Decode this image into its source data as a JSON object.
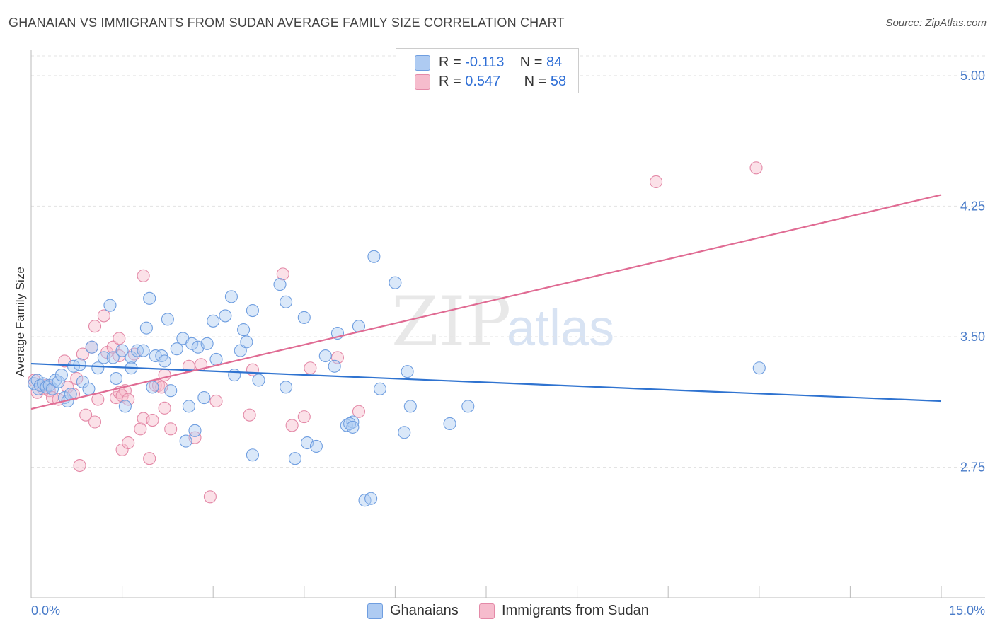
{
  "title": "GHANAIAN VS IMMIGRANTS FROM SUDAN AVERAGE FAMILY SIZE CORRELATION CHART",
  "source": "Source: ZipAtlas.com",
  "watermark": {
    "part1": "ZIP",
    "part2": "atlas"
  },
  "legend": {
    "rows": [
      {
        "r_label": "R = ",
        "r_value": "-0.113",
        "n_label": "N = ",
        "n_value": "84"
      },
      {
        "r_label": "R = ",
        "r_value": "0.547",
        "n_label": "N = ",
        "n_value": "58"
      }
    ]
  },
  "colors": {
    "blue_fill": "#aecbf2",
    "blue_stroke": "#6f9ee0",
    "blue_line": "#2f73d0",
    "pink_fill": "#f6bccd",
    "pink_stroke": "#e48aa8",
    "pink_line": "#e06b93",
    "grid": "#e3e3e3",
    "tick_label": "#4a7cc9"
  },
  "chart_data": {
    "type": "scatter",
    "title": "GHANAIAN VS IMMIGRANTS FROM SUDAN AVERAGE FAMILY SIZE CORRELATION CHART",
    "xlabel": "",
    "ylabel": "Average Family Size",
    "xlim": [
      0,
      15
    ],
    "ylim": [
      2.0,
      5.15
    ],
    "x_ticks_labels": [
      "0.0%",
      "15.0%"
    ],
    "y_ticks": [
      2.75,
      3.5,
      4.25,
      5.0
    ],
    "y_ticks_labels": [
      "2.75",
      "3.50",
      "4.25",
      "5.00"
    ],
    "grid": "horizontal dashed",
    "legend_position": "top-center",
    "series": [
      {
        "name": "Ghanaians",
        "color": "#aecbf2",
        "trend": {
          "x": [
            0,
            15
          ],
          "y": [
            3.345,
            3.13
          ]
        },
        "points": [
          [
            0.05,
            3.23
          ],
          [
            0.1,
            3.25
          ],
          [
            0.12,
            3.2
          ],
          [
            0.15,
            3.22
          ],
          [
            0.2,
            3.23
          ],
          [
            0.25,
            3.21
          ],
          [
            0.3,
            3.22
          ],
          [
            0.35,
            3.2
          ],
          [
            0.4,
            3.25
          ],
          [
            0.45,
            3.24
          ],
          [
            0.5,
            3.28
          ],
          [
            0.55,
            3.15
          ],
          [
            0.6,
            3.13
          ],
          [
            0.65,
            3.17
          ],
          [
            0.7,
            3.33
          ],
          [
            0.8,
            3.34
          ],
          [
            0.85,
            3.24
          ],
          [
            0.95,
            3.2
          ],
          [
            1.0,
            3.44
          ],
          [
            1.1,
            3.32
          ],
          [
            1.2,
            3.38
          ],
          [
            1.3,
            3.68
          ],
          [
            1.35,
            3.38
          ],
          [
            1.4,
            3.26
          ],
          [
            1.5,
            3.42
          ],
          [
            1.55,
            3.1
          ],
          [
            1.65,
            3.38
          ],
          [
            1.65,
            3.32
          ],
          [
            1.75,
            3.42
          ],
          [
            1.85,
            3.42
          ],
          [
            1.9,
            3.55
          ],
          [
            1.95,
            3.72
          ],
          [
            2.0,
            3.21
          ],
          [
            2.05,
            3.39
          ],
          [
            2.15,
            3.39
          ],
          [
            2.2,
            3.36
          ],
          [
            2.25,
            3.6
          ],
          [
            2.3,
            3.19
          ],
          [
            2.4,
            3.43
          ],
          [
            2.5,
            3.49
          ],
          [
            2.55,
            2.9
          ],
          [
            2.6,
            3.1
          ],
          [
            2.65,
            3.46
          ],
          [
            2.7,
            2.96
          ],
          [
            2.75,
            3.44
          ],
          [
            2.85,
            3.15
          ],
          [
            2.9,
            3.46
          ],
          [
            3.0,
            3.59
          ],
          [
            3.05,
            3.37
          ],
          [
            3.2,
            3.62
          ],
          [
            3.3,
            3.73
          ],
          [
            3.35,
            3.28
          ],
          [
            3.45,
            3.42
          ],
          [
            3.5,
            3.54
          ],
          [
            3.55,
            3.47
          ],
          [
            3.65,
            3.65
          ],
          [
            3.75,
            3.25
          ],
          [
            3.65,
            2.82
          ],
          [
            4.1,
            3.8
          ],
          [
            4.2,
            3.21
          ],
          [
            4.2,
            3.7
          ],
          [
            4.35,
            2.8
          ],
          [
            4.5,
            3.61
          ],
          [
            4.55,
            2.89
          ],
          [
            4.7,
            2.87
          ],
          [
            4.85,
            3.39
          ],
          [
            5.0,
            3.33
          ],
          [
            5.05,
            3.52
          ],
          [
            5.2,
            2.99
          ],
          [
            5.3,
            3.01
          ],
          [
            5.25,
            3.0
          ],
          [
            5.4,
            3.56
          ],
          [
            5.5,
            2.56
          ],
          [
            5.6,
            2.57
          ],
          [
            5.65,
            3.96
          ],
          [
            5.75,
            3.2
          ],
          [
            6.0,
            3.81
          ],
          [
            6.15,
            2.95
          ],
          [
            6.2,
            3.3
          ],
          [
            6.25,
            3.1
          ],
          [
            6.9,
            3.0
          ],
          [
            7.2,
            3.1
          ],
          [
            12.0,
            3.32
          ],
          [
            5.3,
            2.98
          ]
        ]
      },
      {
        "name": "Immigrants from Sudan",
        "color": "#f6bccd",
        "trend": {
          "x": [
            0,
            15
          ],
          "y": [
            3.085,
            4.315
          ]
        },
        "points": [
          [
            0.05,
            3.25
          ],
          [
            0.1,
            3.18
          ],
          [
            0.15,
            3.22
          ],
          [
            0.2,
            3.2
          ],
          [
            0.25,
            3.22
          ],
          [
            0.3,
            3.19
          ],
          [
            0.35,
            3.15
          ],
          [
            0.45,
            3.14
          ],
          [
            0.55,
            3.36
          ],
          [
            0.6,
            3.21
          ],
          [
            0.7,
            3.17
          ],
          [
            0.75,
            3.26
          ],
          [
            0.8,
            2.76
          ],
          [
            0.85,
            3.4
          ],
          [
            0.9,
            3.05
          ],
          [
            1.0,
            3.44
          ],
          [
            1.05,
            3.56
          ],
          [
            1.05,
            3.01
          ],
          [
            1.1,
            3.14
          ],
          [
            1.2,
            3.62
          ],
          [
            1.25,
            3.41
          ],
          [
            1.35,
            3.44
          ],
          [
            1.4,
            3.15
          ],
          [
            1.45,
            3.18
          ],
          [
            1.55,
            3.19
          ],
          [
            1.5,
            3.16
          ],
          [
            1.45,
            3.39
          ],
          [
            1.45,
            3.49
          ],
          [
            1.5,
            2.85
          ],
          [
            1.6,
            3.14
          ],
          [
            1.6,
            2.89
          ],
          [
            1.7,
            3.4
          ],
          [
            1.8,
            2.97
          ],
          [
            1.85,
            3.03
          ],
          [
            1.85,
            3.85
          ],
          [
            1.95,
            2.8
          ],
          [
            2.0,
            3.02
          ],
          [
            2.05,
            3.22
          ],
          [
            2.1,
            3.22
          ],
          [
            2.15,
            3.21
          ],
          [
            2.2,
            3.28
          ],
          [
            2.2,
            3.09
          ],
          [
            2.3,
            2.97
          ],
          [
            2.6,
            3.33
          ],
          [
            2.7,
            2.92
          ],
          [
            2.8,
            3.34
          ],
          [
            2.95,
            2.58
          ],
          [
            3.05,
            3.13
          ],
          [
            3.6,
            3.05
          ],
          [
            3.65,
            3.31
          ],
          [
            4.15,
            3.86
          ],
          [
            4.3,
            2.99
          ],
          [
            4.5,
            3.04
          ],
          [
            4.6,
            3.32
          ],
          [
            5.05,
            3.38
          ],
          [
            5.4,
            3.07
          ],
          [
            10.3,
            4.39
          ],
          [
            11.95,
            4.47
          ]
        ]
      }
    ]
  },
  "bottom_legend": [
    "Ghanaians",
    "Immigrants from Sudan"
  ]
}
